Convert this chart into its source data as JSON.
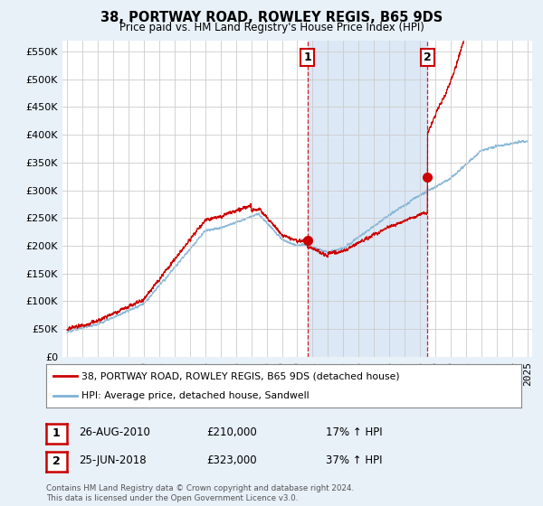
{
  "title": "38, PORTWAY ROAD, ROWLEY REGIS, B65 9DS",
  "subtitle": "Price paid vs. HM Land Registry's House Price Index (HPI)",
  "legend_line1": "38, PORTWAY ROAD, ROWLEY REGIS, B65 9DS (detached house)",
  "legend_line2": "HPI: Average price, detached house, Sandwell",
  "sale1_label": "1",
  "sale1_date": "26-AUG-2010",
  "sale1_price": "£210,000",
  "sale1_hpi": "17% ↑ HPI",
  "sale2_label": "2",
  "sale2_date": "25-JUN-2018",
  "sale2_price": "£323,000",
  "sale2_hpi": "37% ↑ HPI",
  "footnote": "Contains HM Land Registry data © Crown copyright and database right 2024.\nThis data is licensed under the Open Government Licence v3.0.",
  "hpi_color": "#7fb2d5",
  "price_color": "#cc0000",
  "vline_color": "#cc0000",
  "shade_color": "#dce8f5",
  "grid_color": "#cccccc",
  "bg_color": "#e8f0f8",
  "plot_bg": "#ffffff",
  "ylim": [
    0,
    570000
  ],
  "yticks": [
    0,
    50000,
    100000,
    150000,
    200000,
    250000,
    300000,
    350000,
    400000,
    450000,
    500000,
    550000
  ],
  "sale1_year": 2010.65,
  "sale1_value": 210000,
  "sale2_year": 2018.48,
  "sale2_value": 323000
}
